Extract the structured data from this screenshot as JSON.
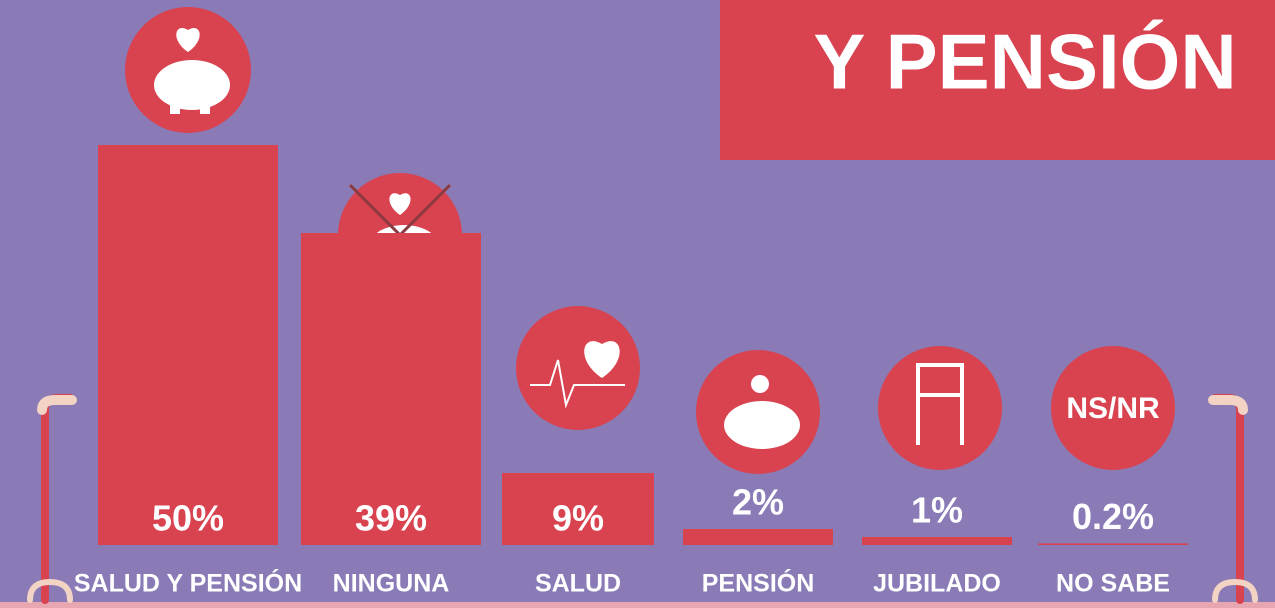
{
  "chart_data": {
    "type": "bar",
    "title": "Y PENSIÓN",
    "categories": [
      "SALUD Y PENSIÓN",
      "NINGUNA",
      "SALUD",
      "PENSIÓN",
      "JUBILADO",
      "NO SABE"
    ],
    "values": [
      50,
      39,
      9,
      2,
      1,
      0.2
    ],
    "value_labels": [
      "50%",
      "39%",
      "9%",
      "2%",
      "1%",
      "0.2%"
    ],
    "color": "#d9424f",
    "annotations": [
      "NS/NR"
    ]
  }
}
